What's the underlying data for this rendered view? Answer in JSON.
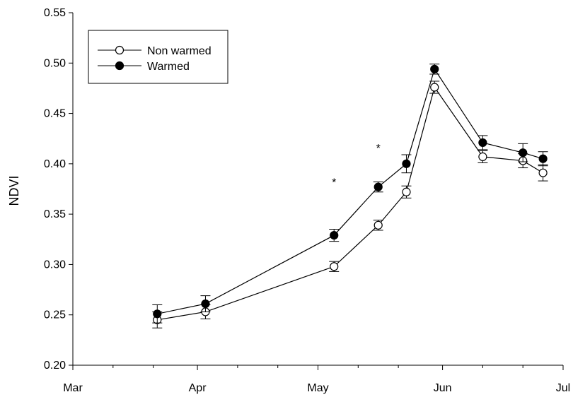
{
  "chart_data": {
    "type": "line",
    "title": "",
    "xlabel": "",
    "ylabel": "NDVI",
    "ylim": [
      0.2,
      0.55
    ],
    "yticks": [
      "0.20",
      "0.25",
      "0.30",
      "0.35",
      "0.40",
      "0.45",
      "0.50",
      "0.55"
    ],
    "xlim": [
      "Mar 1",
      "Jul 1"
    ],
    "xticks": [
      "Mar",
      "Apr",
      "May",
      "Jun",
      "Jul"
    ],
    "grid": false,
    "legend_position": "top-left",
    "series": [
      {
        "name": "Non warmed",
        "marker": "open-circle",
        "x": [
          "Mar 22",
          "Apr 3",
          "May 5",
          "May 16",
          "May 23",
          "May 30",
          "Jun 11",
          "Jun 21",
          "Jun 26"
        ],
        "y": [
          0.245,
          0.253,
          0.298,
          0.339,
          0.372,
          0.476,
          0.407,
          0.403,
          0.391
        ],
        "err": [
          0.008,
          0.007,
          0.005,
          0.005,
          0.006,
          0.006,
          0.006,
          0.007,
          0.008
        ]
      },
      {
        "name": "Warmed",
        "marker": "filled-circle",
        "x": [
          "Mar 22",
          "Apr 3",
          "May 5",
          "May 16",
          "May 23",
          "May 30",
          "Jun 11",
          "Jun 21",
          "Jun 26"
        ],
        "y": [
          0.251,
          0.261,
          0.329,
          0.377,
          0.4,
          0.494,
          0.421,
          0.411,
          0.405
        ],
        "err": [
          0.009,
          0.008,
          0.006,
          0.005,
          0.009,
          0.005,
          0.007,
          0.009,
          0.007
        ]
      }
    ],
    "annotations": [
      {
        "text": "*",
        "x": "May 5",
        "y": 0.382
      },
      {
        "text": "*",
        "x": "May 16",
        "y": 0.416
      }
    ]
  }
}
